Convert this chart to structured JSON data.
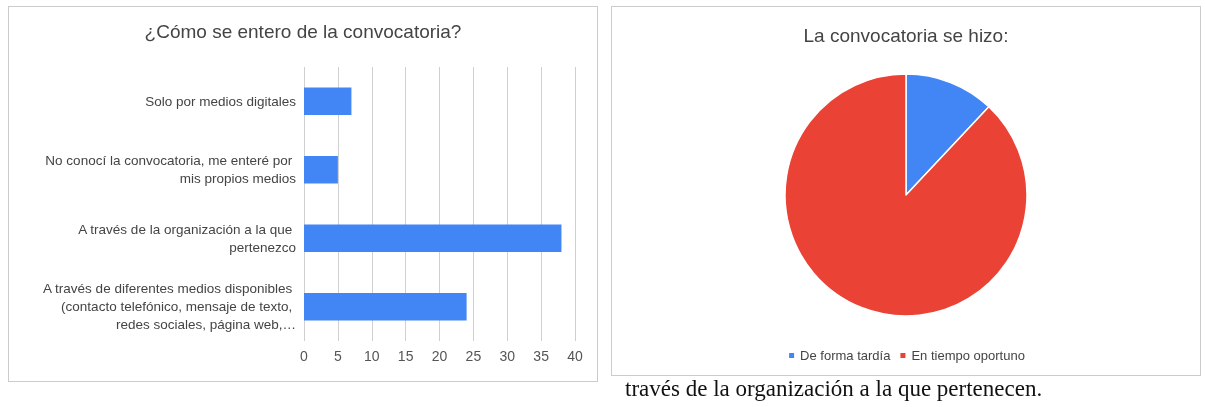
{
  "chart_data": [
    {
      "type": "bar",
      "orientation": "horizontal",
      "title": "¿Cómo se entero de la convocatoria?",
      "categories": [
        "Solo por medios digitales",
        "No conocí la convocatoria, me enteré por mis propios medios",
        "A través de la organización a la que pertenezco",
        "A través de diferentes medios disponibles (contacto telefónico, mensaje de texto, redes sociales, página web,…"
      ],
      "values": [
        7,
        5,
        38,
        24
      ],
      "color": "#4285f4",
      "xlim": [
        0,
        40
      ],
      "xticks": [
        0,
        5,
        10,
        15,
        20,
        25,
        30,
        35,
        40
      ],
      "grid": "x"
    },
    {
      "type": "pie",
      "title": "La convocatoria se hizo:",
      "categories": [
        "De forma tardía",
        "En tiempo oportuno"
      ],
      "values": [
        12,
        88
      ],
      "colors": [
        "#4285f4",
        "#ea4335"
      ],
      "legend": "bottom",
      "annotations": [
        "través de la organización a la que pertenecen."
      ]
    }
  ]
}
